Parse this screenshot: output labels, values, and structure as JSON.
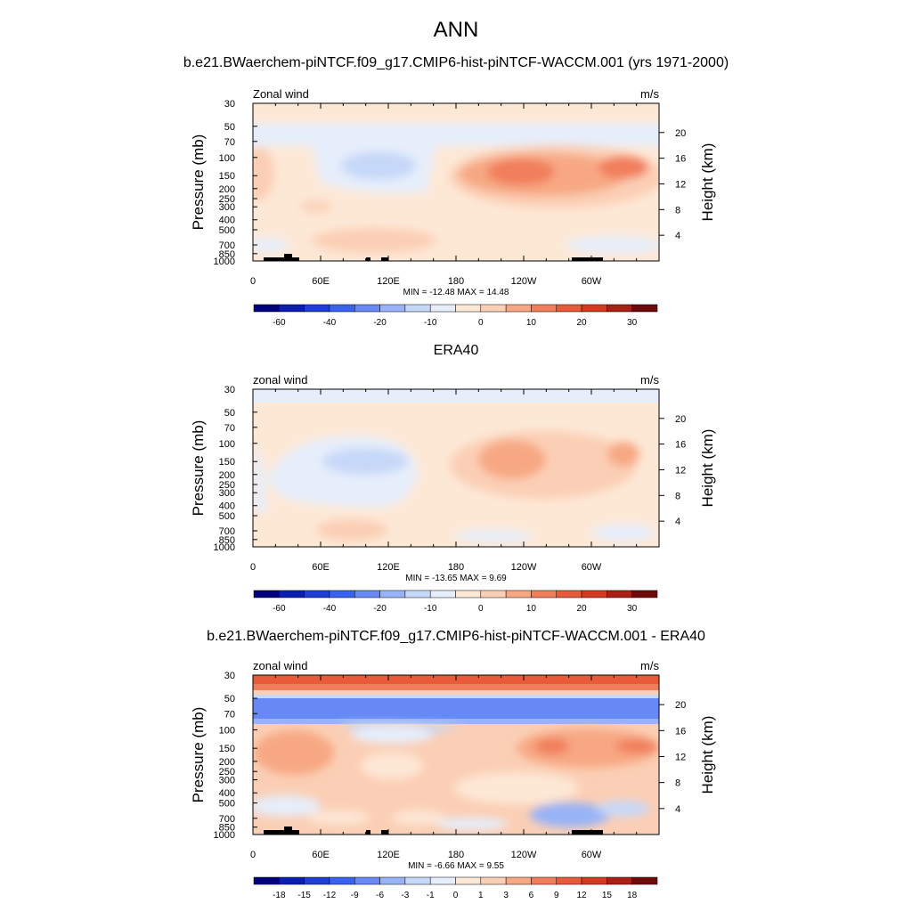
{
  "main_title": "ANN",
  "panels": [
    {
      "title": "b.e21.BWaerchem-piNTCF.f09_g17.CMIP6-hist-piNTCF-WACCM.001 (yrs 1971-2000)",
      "left_label": "Zonal wind",
      "right_label": "m/s",
      "stats": "MIN = -12.48  MAX =  14.48"
    },
    {
      "title": "ERA40",
      "left_label": "zonal wind",
      "right_label": "m/s",
      "stats": "MIN = -13.65  MAX =   9.69"
    },
    {
      "title": "b.e21.BWaerchem-piNTCF.f09_g17.CMIP6-hist-piNTCF-WACCM.001 - ERA40",
      "left_label": "zonal wind",
      "right_label": "m/s",
      "stats": "MIN =  -6.66  MAX =   9.55"
    }
  ],
  "axes": {
    "ylabel_left": "Pressure (mb)",
    "ylabel_right": "Height (km)",
    "pressure_ticks": [
      "30",
      "50",
      "70",
      "100",
      "150",
      "200",
      "250",
      "300",
      "400",
      "500",
      "700",
      "850",
      "1000"
    ],
    "height_ticks": [
      "20",
      "16",
      "12",
      "8",
      "4"
    ],
    "lon_ticks": [
      "0",
      "60E",
      "120E",
      "180",
      "120W",
      "60W"
    ]
  },
  "colorbars": {
    "levels_main": [
      "-60",
      "-40",
      "-20",
      "-10",
      "0",
      "10",
      "20",
      "30"
    ],
    "levels_diff": [
      "-18",
      "-15",
      "-12",
      "-9",
      "-6",
      "-3",
      "-1",
      "0",
      "1",
      "3",
      "6",
      "9",
      "12",
      "15",
      "18"
    ],
    "colors": [
      "#00007f",
      "#0a1fb0",
      "#1e3ed6",
      "#3a62f0",
      "#6689f5",
      "#98b3f7",
      "#c6d8f8",
      "#e6eefb",
      "#fde8d6",
      "#fbcfb5",
      "#f7a883",
      "#f17e5b",
      "#e85a38",
      "#d33a1f",
      "#a82114",
      "#6e0a0a"
    ]
  },
  "chart_data": [
    {
      "type": "heatmap",
      "title": "b.e21.BWaerchem-piNTCF.f09_g17.CMIP6-hist-piNTCF-WACCM.001 (yrs 1971-2000)",
      "variable": "Zonal wind",
      "units": "m/s",
      "x_ticks": [
        "0",
        "60E",
        "120E",
        "180",
        "120W",
        "60W"
      ],
      "y_ticks": [
        30,
        50,
        70,
        100,
        150,
        200,
        250,
        300,
        400,
        500,
        700,
        850,
        1000
      ],
      "ylog": true,
      "ylabel": "Pressure (mb)",
      "y2label": "Height (km)",
      "min": -12.48,
      "max": 14.48,
      "contour_levels": [
        -60,
        -40,
        -20,
        -10,
        0,
        10,
        20,
        30
      ]
    },
    {
      "type": "heatmap",
      "title": "ERA40",
      "variable": "zonal wind",
      "units": "m/s",
      "x_ticks": [
        "0",
        "60E",
        "120E",
        "180",
        "120W",
        "60W"
      ],
      "y_ticks": [
        30,
        50,
        70,
        100,
        150,
        200,
        250,
        300,
        400,
        500,
        700,
        850,
        1000
      ],
      "ylog": true,
      "ylabel": "Pressure (mb)",
      "y2label": "Height (km)",
      "min": -13.65,
      "max": 9.69,
      "contour_levels": [
        -60,
        -40,
        -20,
        -10,
        0,
        10,
        20,
        30
      ]
    },
    {
      "type": "heatmap",
      "title": "b.e21.BWaerchem-piNTCF.f09_g17.CMIP6-hist-piNTCF-WACCM.001 - ERA40",
      "variable": "zonal wind",
      "units": "m/s",
      "x_ticks": [
        "0",
        "60E",
        "120E",
        "180",
        "120W",
        "60W"
      ],
      "y_ticks": [
        30,
        50,
        70,
        100,
        150,
        200,
        250,
        300,
        400,
        500,
        700,
        850,
        1000
      ],
      "ylog": true,
      "ylabel": "Pressure (mb)",
      "y2label": "Height (km)",
      "min": -6.66,
      "max": 9.55,
      "contour_levels": [
        -18,
        -15,
        -12,
        -9,
        -6,
        -3,
        -1,
        0,
        1,
        3,
        6,
        9,
        12,
        15,
        18
      ]
    }
  ]
}
